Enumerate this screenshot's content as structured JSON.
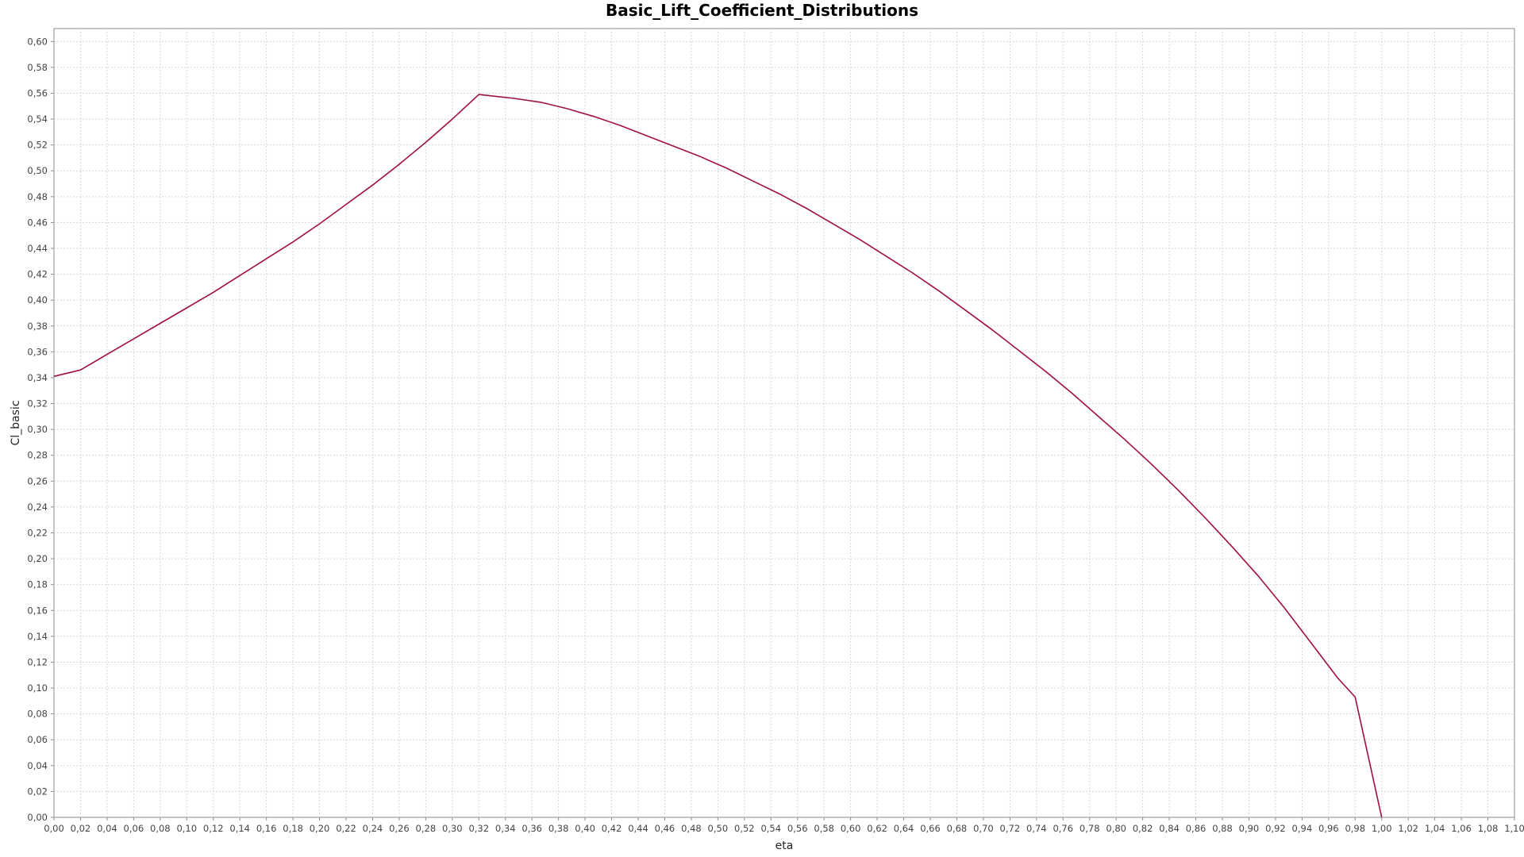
{
  "chart_data": {
    "type": "line",
    "title": "Basic_Lift_Coefficient_Distributions",
    "xlabel": "eta",
    "ylabel": "Cl_basic",
    "xlim": [
      0.0,
      1.1
    ],
    "ylim": [
      0.0,
      0.61
    ],
    "x_ticks": [
      "0,00",
      "0,02",
      "0,04",
      "0,06",
      "0,08",
      "0,10",
      "0,12",
      "0,14",
      "0,16",
      "0,18",
      "0,20",
      "0,22",
      "0,24",
      "0,26",
      "0,28",
      "0,30",
      "0,32",
      "0,34",
      "0,36",
      "0,38",
      "0,40",
      "0,42",
      "0,44",
      "0,46",
      "0,48",
      "0,50",
      "0,52",
      "0,54",
      "0,56",
      "0,58",
      "0,60",
      "0,62",
      "0,64",
      "0,66",
      "0,68",
      "0,70",
      "0,72",
      "0,74",
      "0,76",
      "0,78",
      "0,80",
      "0,82",
      "0,84",
      "0,86",
      "0,88",
      "0,90",
      "0,92",
      "0,94",
      "0,96",
      "0,98",
      "1,00",
      "1,02",
      "1,04",
      "1,06",
      "1,08",
      "1,10"
    ],
    "y_ticks": [
      "0,00",
      "0,02",
      "0,04",
      "0,06",
      "0,08",
      "0,10",
      "0,12",
      "0,14",
      "0,16",
      "0,18",
      "0,20",
      "0,22",
      "0,24",
      "0,26",
      "0,28",
      "0,30",
      "0,32",
      "0,34",
      "0,36",
      "0,38",
      "0,40",
      "0,42",
      "0,44",
      "0,46",
      "0,48",
      "0,50",
      "0,52",
      "0,54",
      "0,56",
      "0,58",
      "0,60"
    ],
    "grid": true,
    "legend": "none",
    "series": [
      {
        "color": "#a0103c",
        "x": [
          0.0,
          0.02,
          0.04,
          0.06,
          0.08,
          0.1,
          0.12,
          0.14,
          0.16,
          0.18,
          0.2,
          0.22,
          0.24,
          0.26,
          0.28,
          0.3,
          0.32,
          0.3467,
          0.3667,
          0.3867,
          0.4067,
          0.4267,
          0.4467,
          0.4667,
          0.4867,
          0.5067,
          0.5267,
          0.5467,
          0.5667,
          0.5867,
          0.6067,
          0.6267,
          0.6467,
          0.6667,
          0.6867,
          0.7067,
          0.7267,
          0.7467,
          0.7667,
          0.7867,
          0.8067,
          0.8267,
          0.8467,
          0.8667,
          0.8867,
          0.9067,
          0.9267,
          0.9467,
          0.9667,
          0.98,
          1.0
        ],
        "y": [
          0.341,
          0.346,
          0.358,
          0.37,
          0.382,
          0.394,
          0.406,
          0.419,
          0.432,
          0.445,
          0.459,
          0.474,
          0.489,
          0.505,
          0.522,
          0.54,
          0.559,
          0.556,
          0.553,
          0.548,
          0.542,
          0.535,
          0.527,
          0.519,
          0.511,
          0.502,
          0.492,
          0.482,
          0.471,
          0.459,
          0.447,
          0.434,
          0.421,
          0.407,
          0.392,
          0.377,
          0.361,
          0.345,
          0.328,
          0.31,
          0.292,
          0.273,
          0.253,
          0.232,
          0.21,
          0.187,
          0.162,
          0.135,
          0.108,
          0.093,
          0.0
        ]
      }
    ]
  }
}
